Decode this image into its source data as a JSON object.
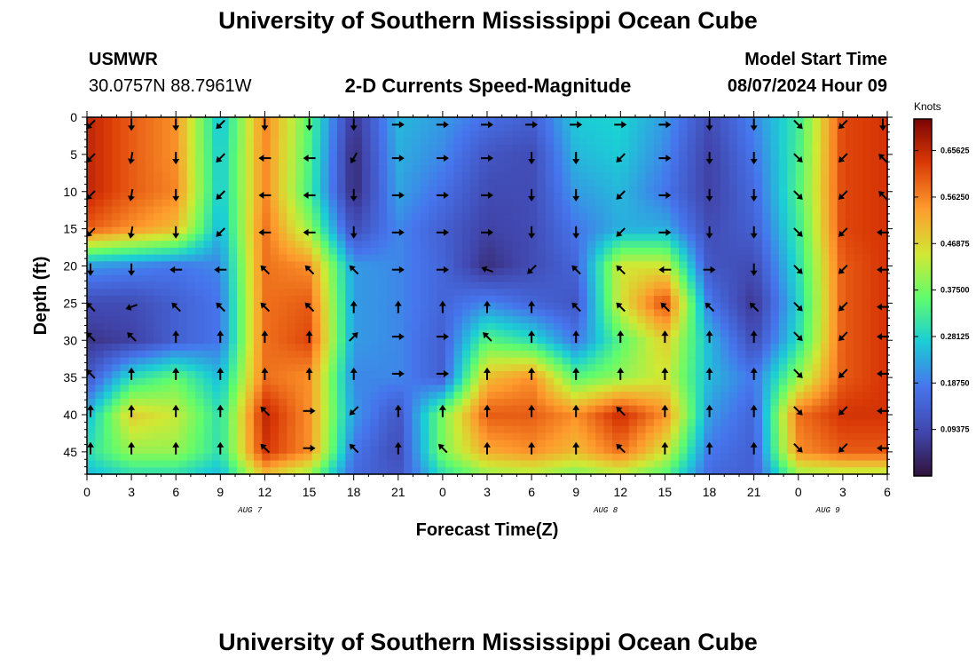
{
  "header": {
    "title": "University of Southern Mississippi Ocean Cube",
    "station": "USMWR",
    "coords": "30.0757N  88.7961W",
    "subtitle": "2-D Currents Speed-Magnitude",
    "model_label": "Model Start Time",
    "model_value": "08/07/2024 Hour 09"
  },
  "footer": {
    "title": "University of Southern Mississippi Ocean Cube"
  },
  "chart_data": {
    "type": "heatmap",
    "title": "2-D Currents Speed-Magnitude",
    "xlabel": "Forecast Time(Z)",
    "ylabel": "Depth (ft)",
    "x_range_hours": [
      0,
      54
    ],
    "y_range_ft": [
      0,
      48
    ],
    "x_tick_labels": [
      "0",
      "3",
      "6",
      "9",
      "12",
      "15",
      "18",
      "21",
      "0",
      "3",
      "6",
      "9",
      "12",
      "15",
      "18",
      "21",
      "0",
      "3",
      "6"
    ],
    "y_tick_labels": [
      "0",
      "5",
      "10",
      "15",
      "20",
      "25",
      "30",
      "35",
      "40",
      "45"
    ],
    "date_labels": [
      {
        "label": "AUG 7",
        "hour": 11
      },
      {
        "label": "AUG 8",
        "hour": 35
      },
      {
        "label": "AUG 9",
        "hour": 50
      }
    ],
    "colorbar": {
      "title": "Knots",
      "range": [
        0.0,
        0.72
      ],
      "tick_labels": [
        "0.65625",
        "0.56250",
        "0.46875",
        "0.37500",
        "0.28125",
        "0.18750",
        "0.09375"
      ],
      "tick_values": [
        0.65625,
        0.5625,
        0.46875,
        0.375,
        0.28125,
        0.1875,
        0.09375
      ]
    },
    "speed_grid_knots": {
      "times_hours": [
        0,
        3,
        6,
        9,
        12,
        15,
        18,
        21,
        24,
        27,
        30,
        33,
        36,
        39,
        42,
        45,
        48,
        51,
        54
      ],
      "depths_ft": [
        0,
        5,
        10,
        15,
        20,
        25,
        30,
        35,
        40,
        45,
        48
      ],
      "values": [
        [
          0.66,
          0.6,
          0.55,
          0.25,
          0.56,
          0.35,
          0.06,
          0.25,
          0.22,
          0.17,
          0.14,
          0.27,
          0.28,
          0.22,
          0.1,
          0.2,
          0.32,
          0.62,
          0.64
        ],
        [
          0.66,
          0.6,
          0.55,
          0.26,
          0.56,
          0.34,
          0.04,
          0.24,
          0.2,
          0.12,
          0.1,
          0.25,
          0.27,
          0.2,
          0.08,
          0.18,
          0.33,
          0.62,
          0.64
        ],
        [
          0.66,
          0.6,
          0.56,
          0.26,
          0.56,
          0.33,
          0.04,
          0.23,
          0.17,
          0.1,
          0.1,
          0.22,
          0.25,
          0.18,
          0.08,
          0.16,
          0.34,
          0.62,
          0.64
        ],
        [
          0.6,
          0.55,
          0.5,
          0.24,
          0.58,
          0.4,
          0.1,
          0.2,
          0.14,
          0.08,
          0.1,
          0.18,
          0.24,
          0.24,
          0.1,
          0.14,
          0.32,
          0.62,
          0.64
        ],
        [
          0.22,
          0.2,
          0.18,
          0.2,
          0.58,
          0.55,
          0.22,
          0.2,
          0.15,
          0.05,
          0.1,
          0.15,
          0.45,
          0.45,
          0.12,
          0.1,
          0.3,
          0.6,
          0.64
        ],
        [
          0.1,
          0.1,
          0.14,
          0.18,
          0.58,
          0.6,
          0.22,
          0.2,
          0.15,
          0.2,
          0.15,
          0.12,
          0.45,
          0.62,
          0.18,
          0.06,
          0.28,
          0.6,
          0.64
        ],
        [
          0.06,
          0.08,
          0.14,
          0.18,
          0.58,
          0.62,
          0.22,
          0.2,
          0.14,
          0.35,
          0.3,
          0.18,
          0.35,
          0.48,
          0.25,
          0.1,
          0.3,
          0.6,
          0.64
        ],
        [
          0.12,
          0.3,
          0.36,
          0.25,
          0.58,
          0.55,
          0.2,
          0.2,
          0.14,
          0.5,
          0.55,
          0.35,
          0.4,
          0.45,
          0.25,
          0.18,
          0.4,
          0.6,
          0.64
        ],
        [
          0.25,
          0.48,
          0.44,
          0.3,
          0.66,
          0.55,
          0.22,
          0.12,
          0.38,
          0.6,
          0.6,
          0.55,
          0.65,
          0.55,
          0.22,
          0.15,
          0.58,
          0.64,
          0.64
        ],
        [
          0.3,
          0.4,
          0.4,
          0.3,
          0.64,
          0.55,
          0.18,
          0.1,
          0.38,
          0.52,
          0.55,
          0.5,
          0.58,
          0.45,
          0.18,
          0.14,
          0.55,
          0.6,
          0.6
        ],
        [
          0.25,
          0.3,
          0.3,
          0.25,
          0.5,
          0.4,
          0.16,
          0.12,
          0.3,
          0.4,
          0.42,
          0.38,
          0.42,
          0.35,
          0.16,
          0.14,
          0.4,
          0.42,
          0.42
        ]
      ]
    },
    "arrow_directions_deg": {
      "rows_depth_ft": [
        1,
        5.5,
        10.5,
        15.5,
        20.5,
        25.5,
        29.5,
        34.5,
        39.5,
        44.5
      ],
      "cols_hours": [
        0,
        3,
        6,
        9,
        12,
        15,
        18,
        21,
        24,
        27,
        30,
        33,
        36,
        39,
        42,
        45,
        48,
        51,
        54
      ],
      "values": [
        [
          135,
          90,
          90,
          135,
          90,
          90,
          90,
          0,
          0,
          0,
          0,
          0,
          0,
          0,
          90,
          90,
          45,
          135,
          90
        ],
        [
          135,
          100,
          90,
          135,
          180,
          180,
          120,
          0,
          0,
          0,
          90,
          90,
          135,
          0,
          90,
          90,
          45,
          135,
          225
        ],
        [
          135,
          100,
          90,
          135,
          180,
          180,
          90,
          0,
          0,
          0,
          90,
          90,
          135,
          0,
          90,
          90,
          45,
          135,
          225
        ],
        [
          135,
          100,
          90,
          135,
          180,
          180,
          90,
          0,
          0,
          0,
          90,
          90,
          135,
          0,
          90,
          90,
          45,
          135,
          180
        ],
        [
          90,
          90,
          180,
          180,
          225,
          225,
          225,
          0,
          0,
          200,
          135,
          225,
          225,
          180,
          0,
          90,
          45,
          135,
          180
        ],
        [
          225,
          160,
          225,
          225,
          225,
          225,
          270,
          270,
          270,
          270,
          270,
          225,
          225,
          225,
          225,
          225,
          45,
          135,
          180
        ],
        [
          225,
          225,
          270,
          270,
          270,
          270,
          315,
          0,
          0,
          225,
          270,
          270,
          270,
          270,
          270,
          270,
          45,
          135,
          180
        ],
        [
          225,
          270,
          270,
          270,
          270,
          270,
          270,
          0,
          0,
          270,
          270,
          270,
          270,
          270,
          270,
          270,
          45,
          135,
          180
        ],
        [
          270,
          270,
          270,
          270,
          225,
          0,
          135,
          270,
          270,
          270,
          270,
          270,
          225,
          270,
          270,
          270,
          45,
          135,
          180
        ],
        [
          270,
          270,
          270,
          270,
          225,
          0,
          225,
          270,
          225,
          270,
          270,
          270,
          225,
          270,
          270,
          270,
          45,
          135,
          180
        ]
      ]
    }
  }
}
